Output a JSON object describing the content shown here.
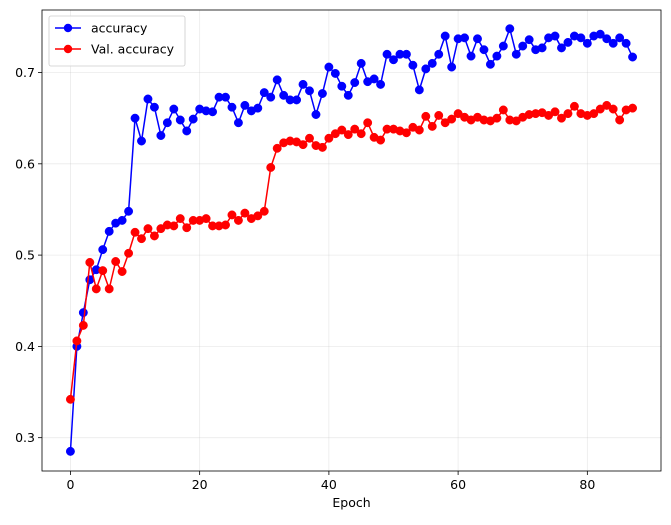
{
  "chart_data": {
    "type": "line",
    "title": "",
    "xlabel": "Epoch",
    "ylabel": "",
    "xlim": [
      -4.4,
      91.4
    ],
    "ylim": [
      0.2635,
      0.7685
    ],
    "xticks": [
      0,
      20,
      40,
      60,
      80
    ],
    "yticks": [
      0.3,
      0.4,
      0.5,
      0.6,
      0.7
    ],
    "xtick_labels": [
      "0",
      "20",
      "40",
      "60",
      "80"
    ],
    "ytick_labels": [
      "0.3",
      "0.4",
      "0.5",
      "0.6",
      "0.7"
    ],
    "grid": true,
    "legend_position": "upper-left",
    "x": [
      0,
      1,
      2,
      3,
      4,
      5,
      6,
      7,
      8,
      9,
      10,
      11,
      12,
      13,
      14,
      15,
      16,
      17,
      18,
      19,
      20,
      21,
      22,
      23,
      24,
      25,
      26,
      27,
      28,
      29,
      30,
      31,
      32,
      33,
      34,
      35,
      36,
      37,
      38,
      39,
      40,
      41,
      42,
      43,
      44,
      45,
      46,
      47,
      48,
      49,
      50,
      51,
      52,
      53,
      54,
      55,
      56,
      57,
      58,
      59,
      60,
      61,
      62,
      63,
      64,
      65,
      66,
      67,
      68,
      69,
      70,
      71,
      72,
      73,
      74,
      75,
      76,
      77,
      78,
      79,
      80,
      81,
      82,
      83,
      84,
      85,
      86,
      87
    ],
    "series": [
      {
        "name": "accuracy",
        "color": "#0000ff",
        "values": [
          0.285,
          0.4,
          0.437,
          0.473,
          0.484,
          0.506,
          0.526,
          0.535,
          0.538,
          0.548,
          0.65,
          0.625,
          0.671,
          0.662,
          0.631,
          0.645,
          0.66,
          0.648,
          0.636,
          0.649,
          0.66,
          0.658,
          0.657,
          0.673,
          0.673,
          0.662,
          0.645,
          0.664,
          0.658,
          0.661,
          0.678,
          0.673,
          0.692,
          0.675,
          0.67,
          0.67,
          0.687,
          0.68,
          0.654,
          0.677,
          0.706,
          0.699,
          0.685,
          0.675,
          0.689,
          0.71,
          0.69,
          0.693,
          0.687,
          0.72,
          0.714,
          0.72,
          0.72,
          0.708,
          0.681,
          0.704,
          0.71,
          0.72,
          0.74,
          0.706,
          0.737,
          0.738,
          0.718,
          0.737,
          0.725,
          0.709,
          0.718,
          0.729,
          0.748,
          0.72,
          0.729,
          0.736,
          0.725,
          0.727,
          0.738,
          0.74,
          0.727,
          0.733,
          0.74,
          0.738,
          0.732,
          0.74,
          0.742,
          0.737,
          0.732,
          0.738,
          0.732,
          0.717
        ]
      },
      {
        "name": "Val. accuracy",
        "color": "#ff0000",
        "values": [
          0.342,
          0.406,
          0.423,
          0.492,
          0.463,
          0.483,
          0.463,
          0.493,
          0.482,
          0.502,
          0.525,
          0.518,
          0.529,
          0.521,
          0.529,
          0.533,
          0.532,
          0.54,
          0.53,
          0.538,
          0.538,
          0.54,
          0.532,
          0.532,
          0.533,
          0.544,
          0.538,
          0.546,
          0.54,
          0.543,
          0.548,
          0.596,
          0.617,
          0.623,
          0.625,
          0.624,
          0.621,
          0.628,
          0.62,
          0.618,
          0.628,
          0.633,
          0.637,
          0.632,
          0.638,
          0.633,
          0.645,
          0.629,
          0.626,
          0.638,
          0.638,
          0.636,
          0.634,
          0.64,
          0.637,
          0.652,
          0.641,
          0.653,
          0.645,
          0.649,
          0.655,
          0.651,
          0.648,
          0.651,
          0.648,
          0.647,
          0.65,
          0.659,
          0.648,
          0.647,
          0.651,
          0.654,
          0.655,
          0.656,
          0.653,
          0.657,
          0.65,
          0.655,
          0.663,
          0.655,
          0.653,
          0.655,
          0.66,
          0.664,
          0.66,
          0.648,
          0.659,
          0.661
        ]
      }
    ]
  }
}
